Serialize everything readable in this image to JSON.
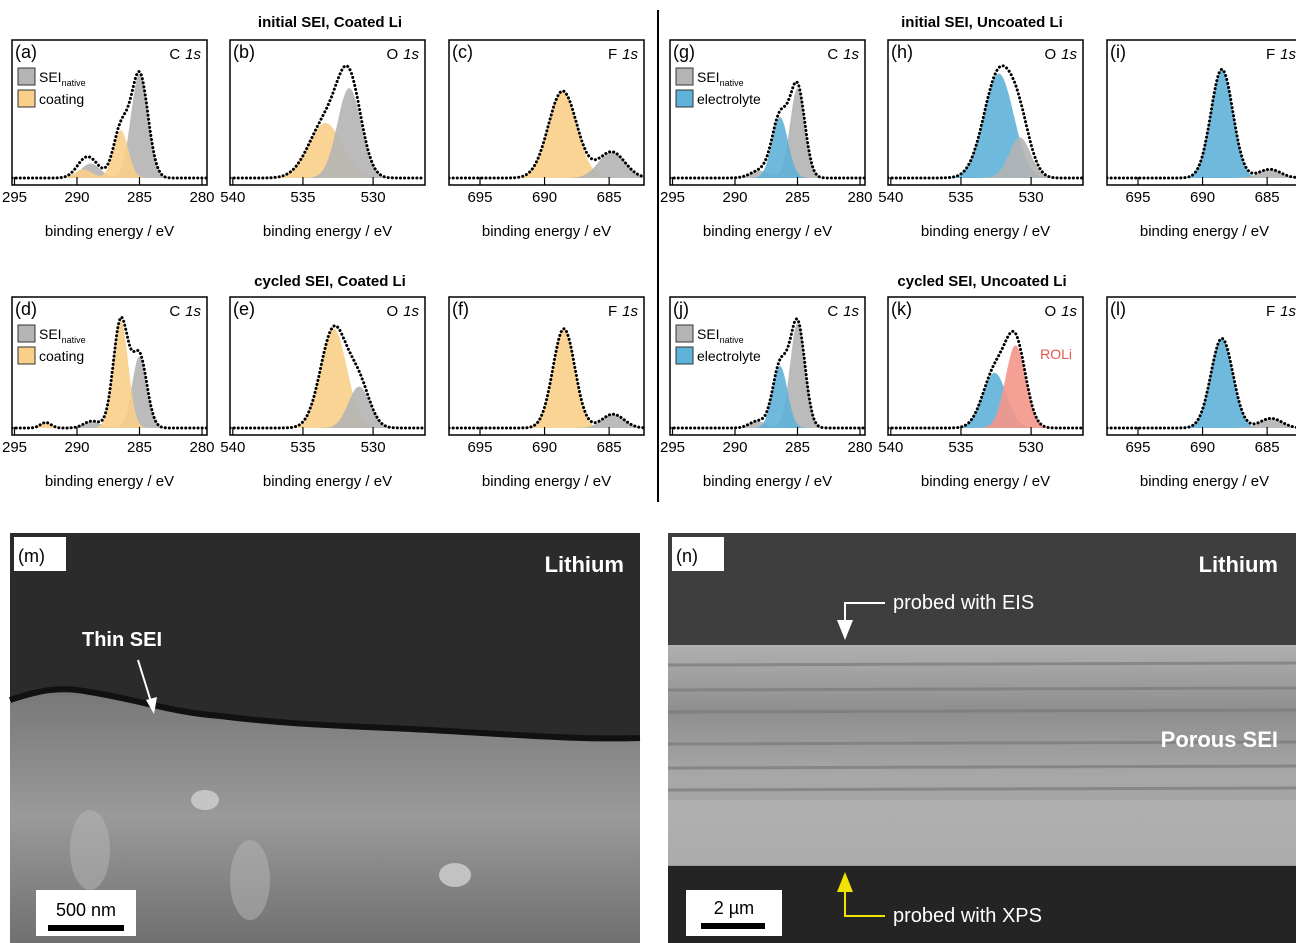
{
  "titles": [
    "initial SEI, Coated Li",
    "cycled SEI, Coated Li",
    "initial SEI, Uncoated Li",
    "cycled SEI, Uncoated Li"
  ],
  "panels": [
    {
      "label": "(a)",
      "element": "C",
      "orbital": "1s",
      "xlabel": "binding energy / eV",
      "xlim": [
        295.2,
        279.6
      ],
      "xticks": [
        295,
        290,
        285,
        280
      ],
      "legend": [
        {
          "name": "SEI",
          "sub": "native",
          "color": "#b4b4b4"
        },
        {
          "name": "coating",
          "color": "#f9cf8a"
        }
      ],
      "components": [
        {
          "color": "#b4b4b4",
          "peaks": [
            [
              285,
              0.72,
              1.6
            ],
            [
              288.9,
              0.1,
              1.8
            ]
          ]
        },
        {
          "color": "#f9cf8a",
          "peaks": [
            [
              286.5,
              0.33,
              1.4
            ],
            [
              289.5,
              0.06,
              1.6
            ]
          ]
        }
      ]
    },
    {
      "label": "(b)",
      "element": "O",
      "orbital": "1s",
      "xlabel": "binding energy / eV",
      "xlim": [
        540.2,
        526.3
      ],
      "xticks": [
        540,
        535,
        530
      ],
      "components": [
        {
          "color": "#f9cf8a",
          "peaks": [
            [
              533.4,
              0.38,
              2.8
            ]
          ]
        },
        {
          "color": "#b4b4b4",
          "peaks": [
            [
              531.7,
              0.62,
              2.0
            ]
          ]
        }
      ]
    },
    {
      "label": "(c)",
      "element": "F",
      "orbital": "1s",
      "xlabel": "binding energy / eV",
      "xlim": [
        697.4,
        682.3
      ],
      "xticks": [
        695,
        690,
        685
      ],
      "components": [
        {
          "color": "#f9cf8a",
          "peaks": [
            [
              688.6,
              0.6,
              2.6
            ]
          ]
        },
        {
          "color": "#b4b4b4",
          "peaks": [
            [
              684.8,
              0.18,
              2.4
            ]
          ]
        }
      ]
    },
    {
      "label": "(d)",
      "element": "C",
      "orbital": "1s",
      "xlabel": "binding energy / eV",
      "xlim": [
        295.2,
        279.6
      ],
      "xticks": [
        295,
        290,
        285,
        280
      ],
      "legend": [
        {
          "name": "SEI",
          "sub": "native",
          "color": "#b4b4b4"
        },
        {
          "name": "coating",
          "color": "#f9cf8a"
        }
      ],
      "components": [
        {
          "color": "#b4b4b4",
          "peaks": [
            [
              285,
              0.52,
              1.4
            ],
            [
              288.8,
              0.05,
              1.5
            ]
          ]
        },
        {
          "color": "#f9cf8a",
          "peaks": [
            [
              286.5,
              0.78,
              1.4
            ],
            [
              292.5,
              0.04,
              1
            ]
          ]
        }
      ]
    },
    {
      "label": "(e)",
      "element": "O",
      "orbital": "1s",
      "xlabel": "binding energy / eV",
      "xlim": [
        540.2,
        526.3
      ],
      "xticks": [
        540,
        535,
        530
      ],
      "components": [
        {
          "color": "#f9cf8a",
          "peaks": [
            [
              532.8,
              0.72,
              2.2
            ]
          ]
        },
        {
          "color": "#b4b4b4",
          "peaks": [
            [
              531,
              0.3,
              1.8
            ]
          ]
        }
      ]
    },
    {
      "label": "(f)",
      "element": "F",
      "orbital": "1s",
      "xlabel": "binding energy / eV",
      "xlim": [
        697.4,
        682.3
      ],
      "xticks": [
        695,
        690,
        685
      ],
      "components": [
        {
          "color": "#f9cf8a",
          "peaks": [
            [
              688.5,
              0.72,
              2.0
            ]
          ]
        },
        {
          "color": "#b4b4b4",
          "peaks": [
            [
              684.7,
              0.1,
              2
            ]
          ]
        }
      ]
    },
    {
      "label": "(g)",
      "element": "C",
      "orbital": "1s",
      "xlabel": "binding energy / eV",
      "xlim": [
        295.2,
        279.6
      ],
      "xticks": [
        295,
        290,
        285,
        280
      ],
      "legend": [
        {
          "name": "SEI",
          "sub": "native",
          "color": "#b4b4b4"
        },
        {
          "name": "electrolyte",
          "color": "#5fb2d8"
        }
      ],
      "components": [
        {
          "color": "#b4b4b4",
          "peaks": [
            [
              285,
              0.62,
              1.4
            ],
            [
              288,
              0.05,
              1.8
            ]
          ]
        },
        {
          "color": "#5fb2d8",
          "peaks": [
            [
              286.4,
              0.42,
              1.5
            ]
          ]
        }
      ]
    },
    {
      "label": "(h)",
      "element": "O",
      "orbital": "1s",
      "xlabel": "binding energy / eV",
      "xlim": [
        540.2,
        526.3
      ],
      "xticks": [
        540,
        535,
        530
      ],
      "components": [
        {
          "color": "#5fb2d8",
          "peaks": [
            [
              532.3,
              0.72,
              2.5
            ]
          ]
        },
        {
          "color": "#b4b4b4",
          "peaks": [
            [
              530.8,
              0.28,
              1.8
            ]
          ]
        }
      ]
    },
    {
      "label": "(i)",
      "element": "F",
      "orbital": "1s",
      "xlabel": "binding energy / eV",
      "xlim": [
        697.4,
        682.3
      ],
      "xticks": [
        695,
        690,
        685
      ],
      "components": [
        {
          "color": "#5fb2d8",
          "peaks": [
            [
              688.5,
              0.75,
              2.0
            ]
          ]
        },
        {
          "color": "#b4b4b4",
          "peaks": [
            [
              684.8,
              0.06,
              2
            ]
          ]
        }
      ]
    },
    {
      "label": "(j)",
      "element": "C",
      "orbital": "1s",
      "xlabel": "binding energy / eV",
      "xlim": [
        295.2,
        279.6
      ],
      "xticks": [
        295,
        290,
        285,
        280
      ],
      "legend": [
        {
          "name": "SEI",
          "sub": "native",
          "color": "#b4b4b4"
        },
        {
          "name": "electrolyte",
          "color": "#5fb2d8"
        }
      ],
      "components": [
        {
          "color": "#b4b4b4",
          "peaks": [
            [
              285,
              0.76,
              1.4
            ],
            [
              288.2,
              0.05,
              1.5
            ]
          ]
        },
        {
          "color": "#5fb2d8",
          "peaks": [
            [
              286.4,
              0.45,
              1.4
            ]
          ]
        }
      ]
    },
    {
      "label": "(k)",
      "element": "O",
      "orbital": "1s",
      "xlabel": "binding energy / eV",
      "xlim": [
        540.2,
        526.3
      ],
      "xticks": [
        540,
        535,
        530
      ],
      "annotation": {
        "text": "ROLi",
        "color": "#e8574a"
      },
      "components": [
        {
          "color": "#5fb2d8",
          "peaks": [
            [
              532.6,
              0.4,
              2
            ]
          ]
        },
        {
          "color": "#f4968a",
          "peaks": [
            [
              531.1,
              0.6,
              1.7
            ]
          ]
        }
      ]
    },
    {
      "label": "(l)",
      "element": "F",
      "orbital": "1s",
      "xlabel": "binding energy / eV",
      "xlim": [
        697.4,
        682.3
      ],
      "xticks": [
        695,
        690,
        685
      ],
      "components": [
        {
          "color": "#5fb2d8",
          "peaks": [
            [
              688.5,
              0.65,
              2
            ]
          ]
        },
        {
          "color": "#b4b4b4",
          "peaks": [
            [
              684.7,
              0.07,
              2
            ]
          ]
        }
      ]
    }
  ],
  "images": [
    {
      "label": "(m)",
      "title": "Lithium",
      "annotations": [
        "Thin SEI"
      ],
      "scale_bar": "500 nm"
    },
    {
      "label": "(n)",
      "title": "Lithium",
      "annotations": [
        "probed with EIS",
        "Porous SEI",
        "probed with XPS"
      ],
      "scale_bar": "2 µm"
    }
  ]
}
